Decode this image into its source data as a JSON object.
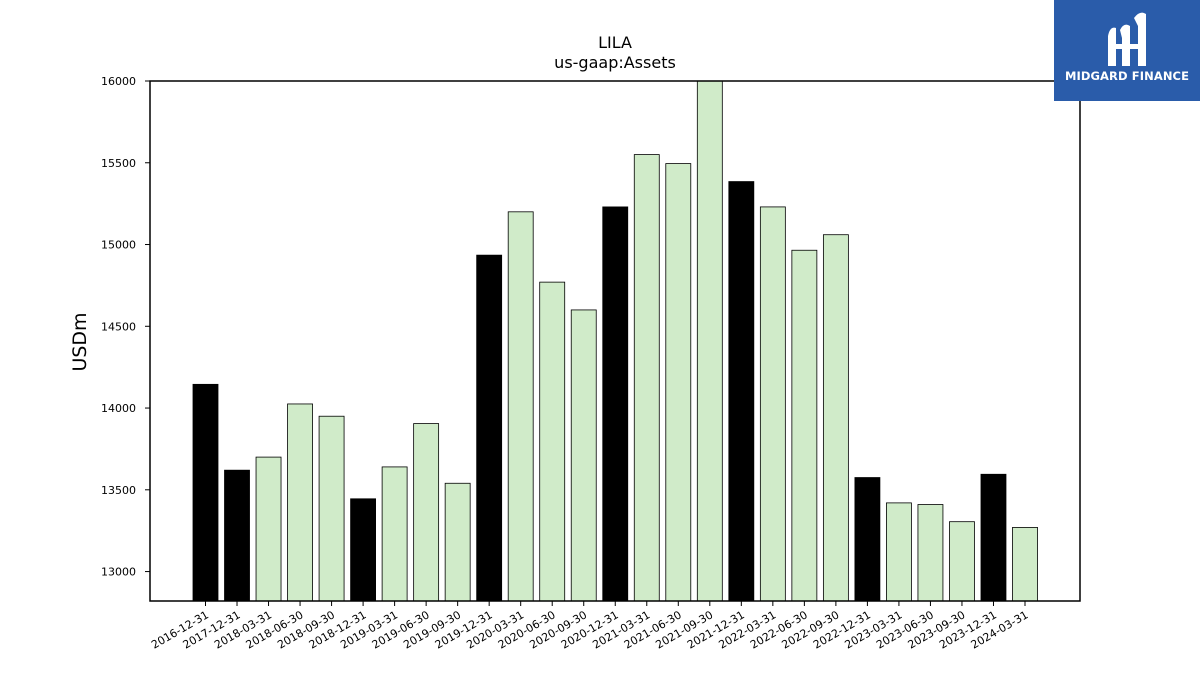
{
  "chart_data": {
    "type": "bar",
    "title": "LILA",
    "subtitle": "us-gaap:Assets",
    "xlabel": "",
    "ylabel": "USDm",
    "ylim": [
      12820,
      16000
    ],
    "yticks": [
      13000,
      13500,
      14000,
      14500,
      15000,
      15500,
      16000
    ],
    "categories": [
      "2016-12-31",
      "2017-12-31",
      "2018-03-31",
      "2018-06-30",
      "2018-09-30",
      "2018-12-31",
      "2019-03-31",
      "2019-06-30",
      "2019-09-30",
      "2019-12-31",
      "2020-03-31",
      "2020-06-30",
      "2020-09-30",
      "2020-12-31",
      "2021-03-31",
      "2021-06-30",
      "2021-09-30",
      "2021-12-31",
      "2022-03-31",
      "2022-06-30",
      "2022-09-30",
      "2022-12-31",
      "2023-03-31",
      "2023-06-30",
      "2023-09-30",
      "2023-12-31",
      "2024-03-31"
    ],
    "values": [
      14145,
      13620,
      13700,
      14025,
      13950,
      13445,
      13640,
      13905,
      13540,
      14935,
      15200,
      14770,
      14600,
      15230,
      15550,
      15495,
      16000,
      15385,
      15230,
      14965,
      15060,
      13575,
      13420,
      13410,
      13305,
      13595,
      13270
    ],
    "annual": [
      true,
      true,
      false,
      false,
      false,
      true,
      false,
      false,
      false,
      true,
      false,
      false,
      false,
      true,
      false,
      false,
      false,
      true,
      false,
      false,
      false,
      true,
      false,
      false,
      false,
      true,
      false
    ],
    "colors": {
      "annual": "#000000",
      "quarterly": "#d0ebc9",
      "edge": "#000000"
    },
    "grid": false,
    "legend": "none"
  },
  "logo": {
    "text": "MIDGARD FINANCE",
    "color": "#2a5caa"
  }
}
